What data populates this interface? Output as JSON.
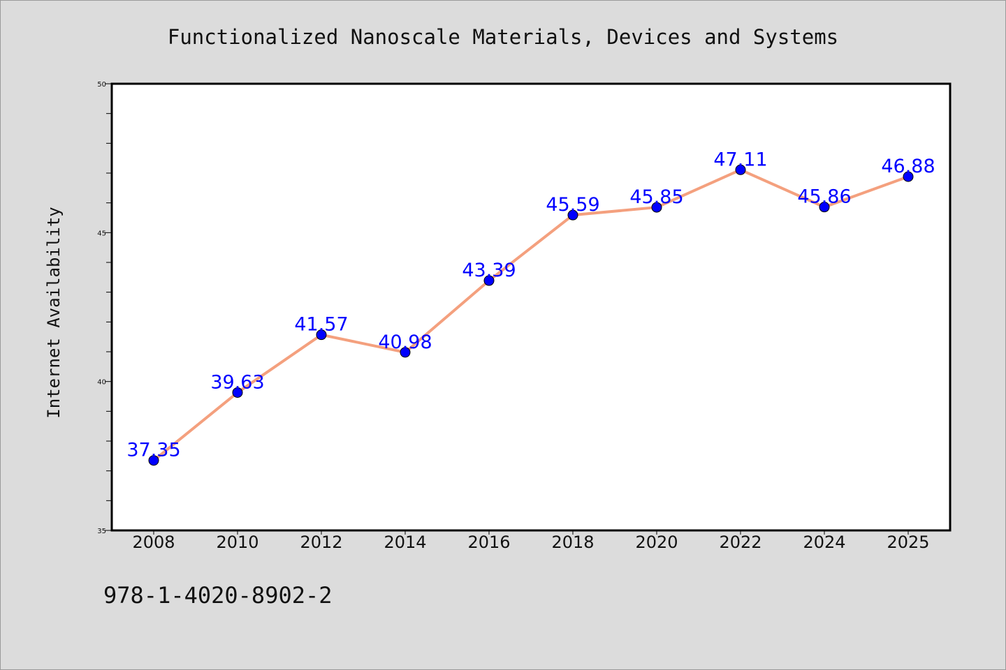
{
  "chart_data": {
    "type": "line",
    "title": "Functionalized Nanoscale Materials, Devices and Systems",
    "xlabel": "",
    "ylabel": "Internet Availability",
    "categories": [
      "2008",
      "2010",
      "2012",
      "2014",
      "2016",
      "2018",
      "2020",
      "2022",
      "2024",
      "2025"
    ],
    "series": [
      {
        "values": [
          37.35,
          39.63,
          41.57,
          40.98,
          43.39,
          45.59,
          45.85,
          47.11,
          45.86,
          46.88
        ]
      }
    ],
    "data_labels": [
      "37.35",
      "39.63",
      "41.57",
      "40.98",
      "43.39",
      "45.59",
      "45.85",
      "47.11",
      "45.86",
      "46.88"
    ],
    "ylim": [
      35,
      50
    ],
    "yticks": [
      35,
      40,
      45,
      50
    ],
    "ytick_minor_step": 1,
    "grid": false,
    "line_color": "#f4a07e",
    "marker_color": "#0000ff",
    "label_color": "#0000ff",
    "background_color": "#dcdcdc",
    "plot_background": "#ffffff"
  },
  "footnote": "978-1-4020-8902-2"
}
